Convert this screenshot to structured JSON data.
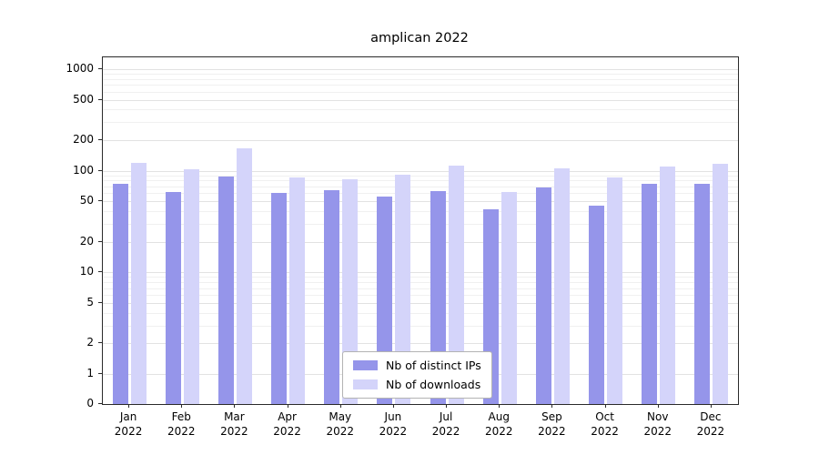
{
  "chart_data": {
    "type": "bar",
    "title": "amplican 2022",
    "categories": [
      "Jan 2022",
      "Feb 2022",
      "Mar 2022",
      "Apr 2022",
      "May 2022",
      "Jun 2022",
      "Jul 2022",
      "Aug 2022",
      "Sep 2022",
      "Oct 2022",
      "Nov 2022",
      "Dec 2022"
    ],
    "series": [
      {
        "name": "Nb of distinct IPs",
        "color": "#9595ea",
        "values": [
          75,
          62,
          87,
          61,
          65,
          56,
          63,
          42,
          68,
          45,
          75,
          75
        ]
      },
      {
        "name": "Nb of downloads",
        "color": "#d4d4fa",
        "values": [
          120,
          103,
          165,
          86,
          83,
          92,
          113,
          62,
          106,
          86,
          110,
          116
        ]
      }
    ],
    "yscale": "log",
    "y_ticks": [
      0,
      1,
      2,
      5,
      10,
      20,
      50,
      100,
      200,
      500,
      1000
    ],
    "ylim": [
      0,
      1000
    ],
    "grid": true,
    "legend_position": "bottom-center"
  }
}
